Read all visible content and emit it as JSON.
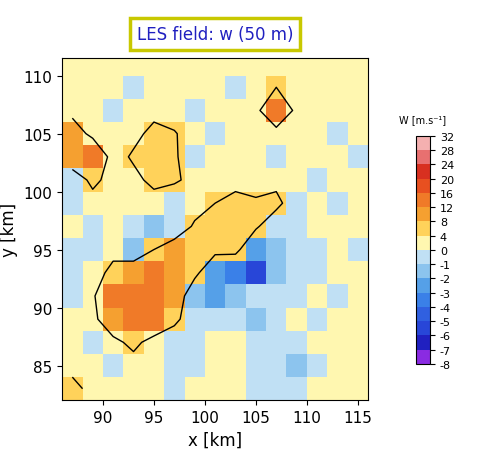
{
  "chart_data": {
    "type": "heatmap",
    "title": "LES field: w (50 m)",
    "x_label": "x [km]",
    "y_label": "y [km]",
    "xlim": [
      86,
      116
    ],
    "ylim": [
      82,
      111.5
    ],
    "xticks": [
      90,
      95,
      100,
      105,
      110,
      115
    ],
    "yticks": [
      85,
      90,
      95,
      100,
      105,
      110
    ],
    "x": [
      87,
      89,
      91,
      93,
      95,
      97,
      99,
      101,
      103,
      105,
      107,
      109,
      111,
      113,
      115
    ],
    "y": [
      83,
      85,
      87,
      89,
      91,
      93,
      95,
      97,
      99,
      101,
      103,
      105,
      107,
      109,
      111
    ],
    "cells": [
      [
        6,
        2,
        1,
        2,
        0.5,
        -0.5,
        1,
        2,
        1,
        -0.5,
        -1,
        -0.5,
        1,
        2,
        1
      ],
      [
        2,
        1,
        -0.5,
        1,
        2,
        -0.5,
        -1,
        1,
        2,
        -0.5,
        -1,
        -1.5,
        -0.5,
        1,
        2
      ],
      [
        1,
        -0.5,
        2,
        6,
        1,
        -1,
        -0.5,
        1,
        2,
        -1,
        -0.5,
        -1,
        1,
        2,
        1
      ],
      [
        1,
        2,
        10,
        14,
        12,
        6,
        -1,
        -0.5,
        -1,
        -1.5,
        -0.5,
        1,
        -0.5,
        1,
        2
      ],
      [
        -0.5,
        3,
        12,
        14,
        13,
        10,
        -2,
        -3,
        -1.5,
        -1,
        -0.5,
        -1,
        1,
        -0.5,
        1
      ],
      [
        -1,
        1,
        6,
        10,
        12,
        9,
        6,
        -3,
        -4,
        -6,
        -2,
        -0.5,
        -1,
        1,
        2
      ],
      [
        -0.5,
        -1,
        2,
        -2,
        4,
        8,
        7,
        6,
        6,
        -3,
        -2,
        -1,
        -0.5,
        1,
        -0.5
      ],
      [
        1,
        -0.5,
        1,
        -1,
        -2,
        -1,
        5,
        7,
        6,
        5,
        -1,
        -0.5,
        1,
        2,
        1
      ],
      [
        -0.5,
        1,
        2,
        1,
        1,
        -1,
        1,
        4,
        6,
        5,
        6,
        -0.5,
        1,
        -0.5,
        1
      ],
      [
        -1,
        6,
        1,
        2,
        6,
        5,
        2,
        1,
        2,
        1,
        2,
        1,
        -0.5,
        1,
        2
      ],
      [
        10,
        12,
        1,
        5,
        6,
        5,
        -0.5,
        2,
        1,
        1,
        -0.5,
        1,
        2,
        1,
        -0.5
      ],
      [
        8,
        2,
        1,
        2,
        6,
        4.5,
        1,
        -0.5,
        1,
        2,
        1,
        2,
        1,
        -0.5,
        1
      ],
      [
        2,
        1,
        -0.5,
        1,
        2,
        1,
        -1,
        1,
        2,
        2,
        12,
        2,
        1,
        2,
        1
      ],
      [
        1,
        2,
        1,
        -0.5,
        1,
        2,
        1,
        2,
        -0.5,
        1,
        4,
        2,
        1,
        1,
        2
      ],
      [
        1,
        1,
        2,
        1,
        2,
        1,
        2,
        1,
        1,
        2,
        1,
        1,
        2,
        1,
        1
      ]
    ],
    "colorbar_label": "W [m.s⁻¹]",
    "colorbar_ticks": [
      -8,
      -7,
      -6,
      -5,
      -4,
      -3,
      -2,
      -1,
      0,
      4,
      8,
      12,
      16,
      20,
      24,
      28,
      32
    ],
    "colors": [
      "#8a2be2",
      "#2020c0",
      "#2846d8",
      "#3060e0",
      "#3a80e8",
      "#55a0e8",
      "#8cc4ee",
      "#c0e0f4",
      "#fff7b0",
      "#ffd25a",
      "#f5a030",
      "#f07a28",
      "#e85020",
      "#d83020",
      "#e87070",
      "#f4b0b0"
    ]
  }
}
